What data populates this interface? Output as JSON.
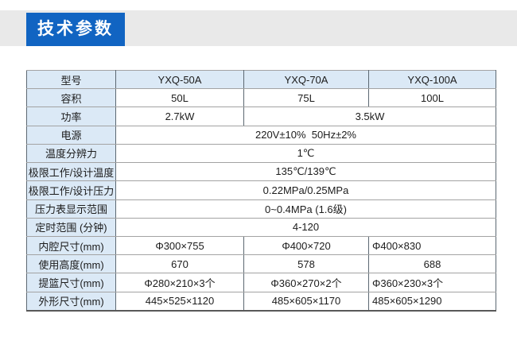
{
  "page": {
    "title": "技术参数"
  },
  "colors": {
    "accent_blue": "#1164c2",
    "band_grey": "#e9e9e9",
    "header_cell_blue": "#dbe9f6",
    "border_horizontal": "#a3a3a3",
    "border_vertical": "#5c6872"
  },
  "table": {
    "columns": [
      "型号",
      "YXQ-50A",
      "YXQ-70A",
      "YXQ-100A"
    ],
    "rows": [
      {
        "label": "容积",
        "cells": [
          {
            "text": "50L",
            "span": 1
          },
          {
            "text": "75L",
            "span": 1
          },
          {
            "text": "100L",
            "span": 1
          }
        ]
      },
      {
        "label": "功率",
        "cells": [
          {
            "text": "2.7kW",
            "span": 1
          },
          {
            "text": "3.5kW",
            "span": 2
          }
        ]
      },
      {
        "label": "电源",
        "cells": [
          {
            "text": "220V±10%  50Hz±2%",
            "span": 3
          }
        ]
      },
      {
        "label": "温度分辨力",
        "cells": [
          {
            "text": "1℃",
            "span": 3
          }
        ]
      },
      {
        "label": "极限工作/设计温度",
        "cells": [
          {
            "text": "135℃/139℃",
            "span": 3
          }
        ]
      },
      {
        "label": "极限工作/设计压力",
        "cells": [
          {
            "text": "0.22MPa/0.25MPa",
            "span": 3
          }
        ]
      },
      {
        "label": "压力表显示范围",
        "cells": [
          {
            "text": "0~0.4MPa (1.6级)",
            "span": 3
          }
        ]
      },
      {
        "label": "定时范围 (分钟)",
        "cells": [
          {
            "text": "4-120",
            "span": 3
          }
        ]
      },
      {
        "label": "内腔尺寸(mm)",
        "cells": [
          {
            "text": "Φ300×755",
            "span": 1
          },
          {
            "text": "Φ400×720",
            "span": 1
          },
          {
            "text": "Φ400×830",
            "span": 1,
            "align": "left"
          }
        ]
      },
      {
        "label": "使用高度(mm)",
        "cells": [
          {
            "text": "670",
            "span": 1
          },
          {
            "text": "578",
            "span": 1
          },
          {
            "text": "688",
            "span": 1
          }
        ]
      },
      {
        "label": "提篮尺寸(mm)",
        "cells": [
          {
            "text": "Φ280×210×3个",
            "span": 1
          },
          {
            "text": "Φ360×270×2个",
            "span": 1
          },
          {
            "text": "Φ360×230×3个",
            "span": 1,
            "align": "left"
          }
        ]
      },
      {
        "label": "外形尺寸(mm)",
        "cells": [
          {
            "text": "445×525×1120",
            "span": 1
          },
          {
            "text": "485×605×1170",
            "span": 1
          },
          {
            "text": "485×605×1290",
            "span": 1,
            "align": "left"
          }
        ]
      }
    ]
  }
}
